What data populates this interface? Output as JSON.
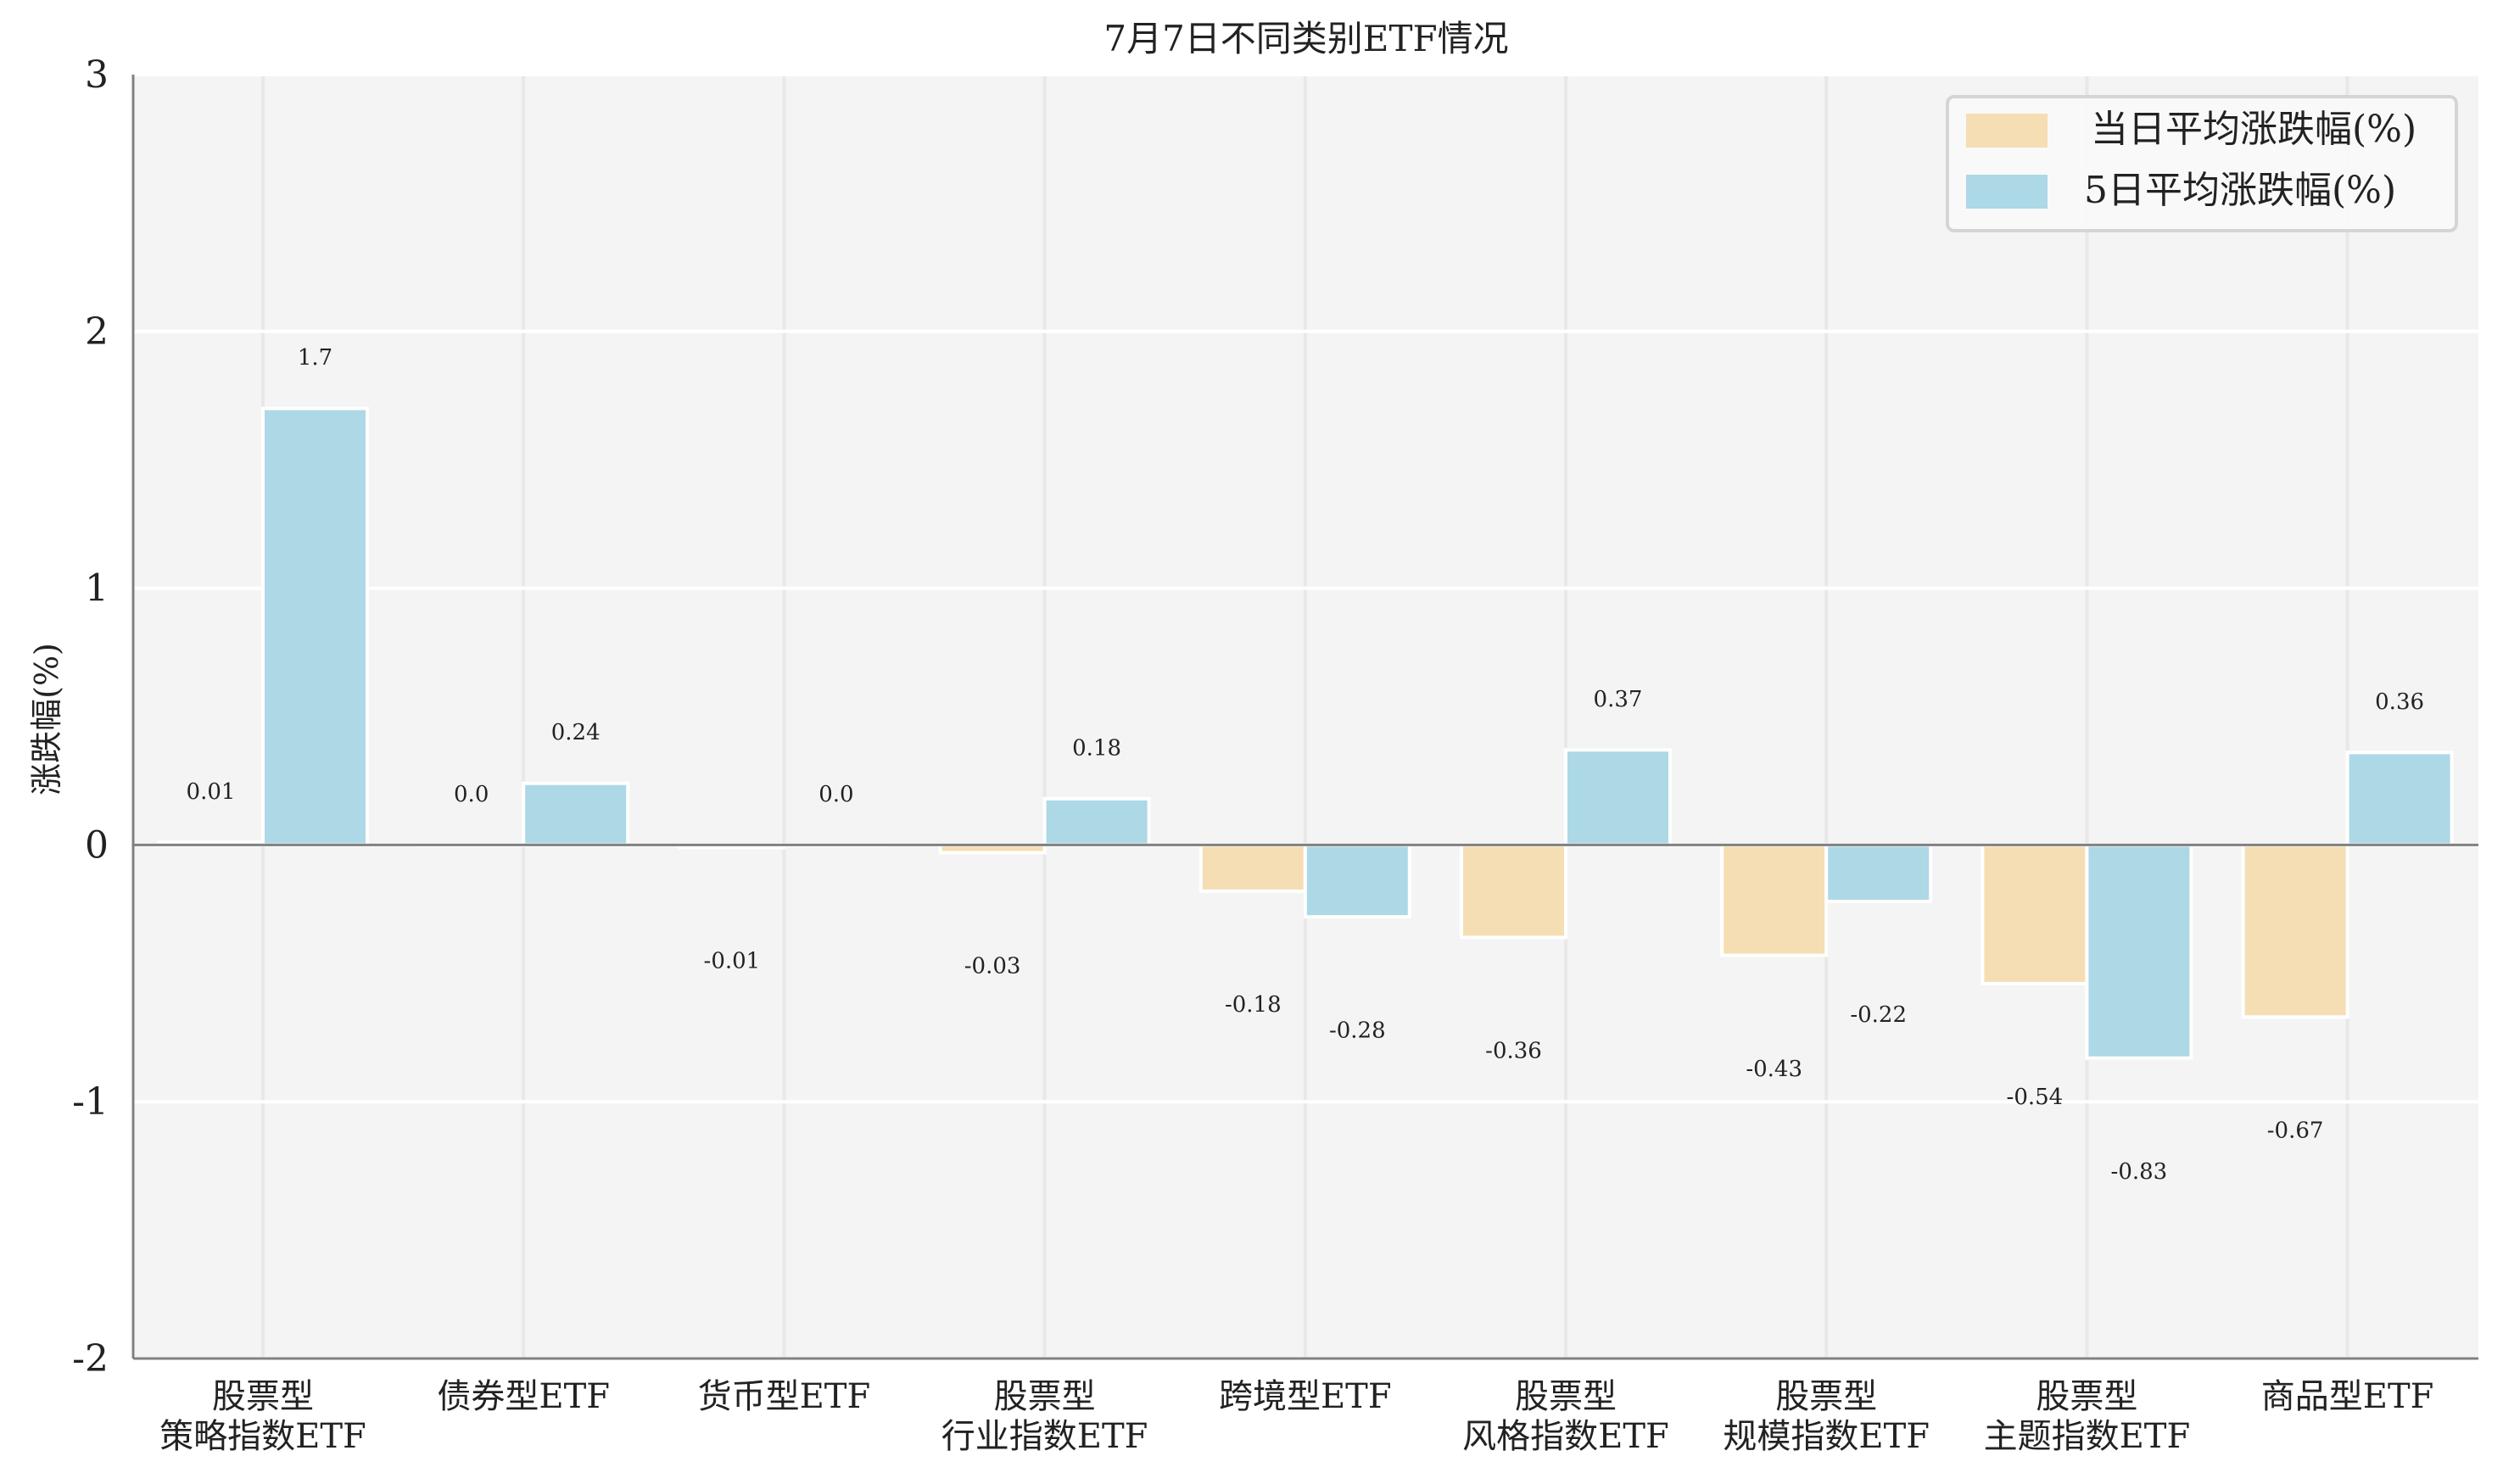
{
  "chart_data": {
    "type": "bar",
    "title": "7月7日不同类别ETF情况",
    "xlabel": "",
    "ylabel": "涨跌幅(%)",
    "ylim": [
      -2,
      3
    ],
    "yticks": [
      3,
      2,
      1,
      0,
      -1,
      -2
    ],
    "grid": true,
    "legend_position": "upper right",
    "categories": [
      [
        "股票型",
        "策略指数ETF"
      ],
      [
        "债券型ETF"
      ],
      [
        "货币型ETF"
      ],
      [
        "股票型",
        "行业指数ETF"
      ],
      [
        "跨境型ETF"
      ],
      [
        "股票型",
        "风格指数ETF"
      ],
      [
        "股票型",
        "规模指数ETF"
      ],
      [
        "股票型",
        "主题指数ETF"
      ],
      [
        "商品型ETF"
      ]
    ],
    "series": [
      {
        "name": "当日平均涨跌幅(%)",
        "color": "#F5DEB3",
        "values": [
          0.01,
          0.0,
          -0.01,
          -0.03,
          -0.18,
          -0.36,
          -0.43,
          -0.54,
          -0.67
        ],
        "labels": [
          "0.01",
          "0.0",
          "-0.01",
          "-0.03",
          "-0.18",
          "-0.36",
          "-0.43",
          "-0.54",
          "-0.67"
        ]
      },
      {
        "name": "5日平均涨跌幅(%)",
        "color": "#ADD8E6",
        "values": [
          1.7,
          0.24,
          0.0,
          0.18,
          -0.28,
          0.37,
          -0.22,
          -0.83,
          0.36
        ],
        "labels": [
          "1.7",
          "0.24",
          "0.0",
          "0.18",
          "-0.28",
          "0.37",
          "-0.22",
          "-0.83",
          "0.36"
        ]
      }
    ]
  },
  "colors": {
    "plot_background": "#F4F4F4",
    "grid_horizontal": "#FFFFFF",
    "grid_vertical": "#E8E8E8",
    "axis": "#808080",
    "bar_edge": "#FFFFFF"
  }
}
